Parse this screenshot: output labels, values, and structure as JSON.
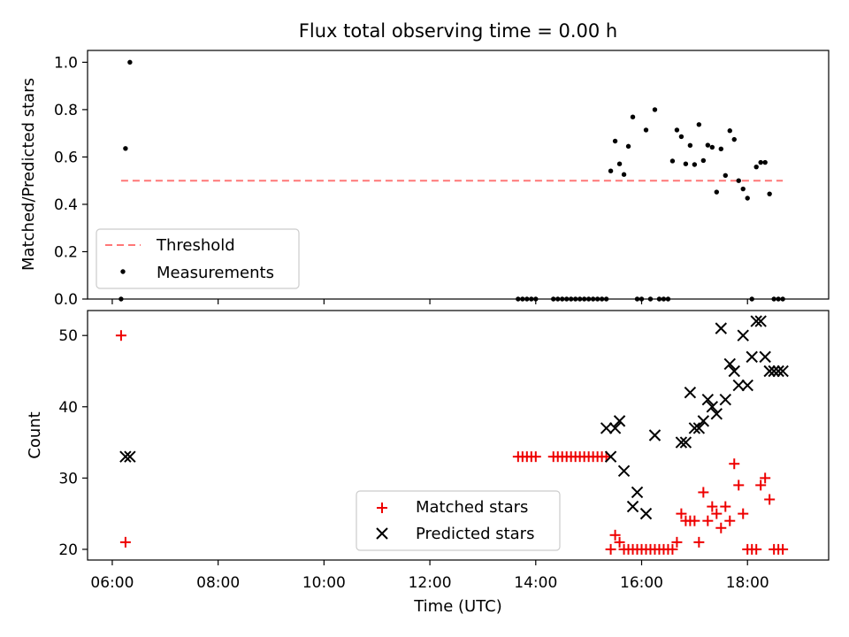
{
  "figure": {
    "title": "Flux total observing time = 0.00 h",
    "xlabel": "Time (UTC)",
    "x_tick_labels": [
      "06:00",
      "08:00",
      "10:00",
      "12:00",
      "14:00",
      "16:00",
      "18:00"
    ]
  },
  "chart_data": [
    {
      "type": "scatter",
      "ylabel": "Matched/Predicted stars",
      "xlim": [
        "05:32",
        "19:32"
      ],
      "ylim": [
        0.0,
        1.05
      ],
      "y_tick_labels": [
        "0.0",
        "0.2",
        "0.4",
        "0.6",
        "0.8",
        "1.0"
      ],
      "legend_position": "lower-left",
      "threshold": {
        "name": "Threshold",
        "value": 0.5,
        "x_range": [
          "06:10",
          "18:40"
        ],
        "color": "#ff7777",
        "style": "dashed"
      },
      "series": [
        {
          "name": "Measurements",
          "color": "#000000",
          "marker": "dot",
          "x": [
            "06:10",
            "06:15",
            "06:20",
            "13:40",
            "13:45",
            "13:50",
            "13:55",
            "14:00",
            "14:20",
            "14:25",
            "14:30",
            "14:35",
            "14:40",
            "14:45",
            "14:50",
            "14:55",
            "15:00",
            "15:05",
            "15:10",
            "15:15",
            "15:20",
            "15:25",
            "15:30",
            "15:35",
            "15:40",
            "15:45",
            "15:50",
            "15:55",
            "16:00",
            "16:05",
            "16:10",
            "16:15",
            "16:20",
            "16:25",
            "16:30",
            "16:35",
            "16:40",
            "16:45",
            "16:50",
            "16:55",
            "17:00",
            "17:05",
            "17:10",
            "17:15",
            "17:20",
            "17:25",
            "17:30",
            "17:35",
            "17:40",
            "17:45",
            "17:50",
            "17:55",
            "18:00",
            "18:05",
            "18:10",
            "18:15",
            "18:20",
            "18:25",
            "18:30",
            "18:35",
            "18:40"
          ],
          "y": [
            0.0,
            0.636,
            1.0,
            0.0,
            0.0,
            0.0,
            0.0,
            0.0,
            0.0,
            0.0,
            0.0,
            0.0,
            0.0,
            0.0,
            0.0,
            0.0,
            0.0,
            0.0,
            0.0,
            0.0,
            0.0,
            0.541,
            0.667,
            0.571,
            0.526,
            0.645,
            0.769,
            0.0,
            0.0,
            0.714,
            0.0,
            0.8,
            0.0,
            0.0,
            0.0,
            0.583,
            0.714,
            0.686,
            0.571,
            0.649,
            0.568,
            0.737,
            0.585,
            0.65,
            0.641,
            0.452,
            0.634,
            0.522,
            0.711,
            0.674,
            0.5,
            0.465,
            0.426,
            0.0,
            0.558,
            0.577,
            0.577,
            0.444,
            0.0,
            0.0,
            0.0
          ]
        }
      ]
    },
    {
      "type": "scatter",
      "ylabel": "Count",
      "xlim": [
        "05:32",
        "19:32"
      ],
      "ylim": [
        18.5,
        53.5
      ],
      "y_tick_labels": [
        "20",
        "30",
        "40",
        "50"
      ],
      "legend_position": "lower-center",
      "series": [
        {
          "name": "Matched stars",
          "color": "#ee0000",
          "marker": "plus",
          "x": [
            "06:10",
            "06:15",
            "13:40",
            "13:45",
            "13:50",
            "13:55",
            "14:00",
            "14:20",
            "14:25",
            "14:30",
            "14:35",
            "14:40",
            "14:45",
            "14:50",
            "14:55",
            "15:00",
            "15:05",
            "15:10",
            "15:15",
            "15:20",
            "15:25",
            "15:30",
            "15:35",
            "15:40",
            "15:45",
            "15:50",
            "15:55",
            "16:00",
            "16:05",
            "16:10",
            "16:15",
            "16:20",
            "16:25",
            "16:30",
            "16:35",
            "16:40",
            "16:45",
            "16:50",
            "16:55",
            "17:00",
            "17:05",
            "17:10",
            "17:15",
            "17:20",
            "17:25",
            "17:30",
            "17:35",
            "17:40",
            "17:45",
            "17:50",
            "17:55",
            "18:00",
            "18:05",
            "18:10",
            "18:15",
            "18:20",
            "18:25",
            "18:30",
            "18:35",
            "18:40"
          ],
          "y": [
            50,
            21,
            33,
            33,
            33,
            33,
            33,
            33,
            33,
            33,
            33,
            33,
            33,
            33,
            33,
            33,
            33,
            33,
            33,
            33,
            20,
            22,
            21,
            20,
            20,
            20,
            20,
            20,
            20,
            20,
            20,
            20,
            20,
            20,
            20,
            21,
            25,
            24,
            24,
            24,
            21,
            28,
            24,
            26,
            25,
            23,
            26,
            24,
            32,
            29,
            25,
            20,
            20,
            20,
            29,
            30,
            27,
            20,
            20,
            20
          ],
          "render_y": [
            50,
            21,
            33,
            33,
            33,
            33,
            33,
            33,
            33,
            33,
            33,
            33,
            33,
            33,
            33,
            33,
            33,
            33,
            33,
            33,
            20,
            22,
            21,
            20,
            20,
            20,
            20,
            20,
            20,
            20,
            20,
            20,
            20,
            20,
            20,
            21,
            25,
            24,
            24,
            24,
            21,
            28,
            24,
            26,
            25,
            23,
            26,
            24,
            32,
            29,
            25,
            20,
            20,
            20,
            29,
            30,
            27,
            20,
            20,
            20
          ]
        },
        {
          "name": "Predicted stars",
          "color": "#000000",
          "marker": "x",
          "x": [
            "06:15",
            "06:20",
            "15:20",
            "15:25",
            "15:30",
            "15:35",
            "15:40",
            "15:50",
            "15:55",
            "16:05",
            "16:15",
            "16:45",
            "16:50",
            "16:55",
            "17:00",
            "17:05",
            "17:10",
            "17:15",
            "17:20",
            "17:25",
            "17:30",
            "17:35",
            "17:40",
            "17:45",
            "17:50",
            "17:55",
            "18:00",
            "18:05",
            "18:10",
            "18:15",
            "18:20",
            "18:25",
            "18:30",
            "18:35",
            "18:40"
          ],
          "y": [
            33,
            33,
            37,
            33,
            37,
            38,
            31,
            26,
            28,
            25,
            36,
            35,
            35,
            42,
            37,
            37,
            38,
            41,
            40,
            39,
            51,
            41,
            46,
            45,
            43,
            50,
            43,
            47,
            52,
            52,
            47,
            45,
            45,
            45,
            45
          ]
        }
      ]
    }
  ],
  "legend_top": [
    {
      "label": "Threshold"
    },
    {
      "label": "Measurements"
    }
  ],
  "legend_bottom": [
    {
      "label": "Matched stars"
    },
    {
      "label": "Predicted stars"
    }
  ]
}
